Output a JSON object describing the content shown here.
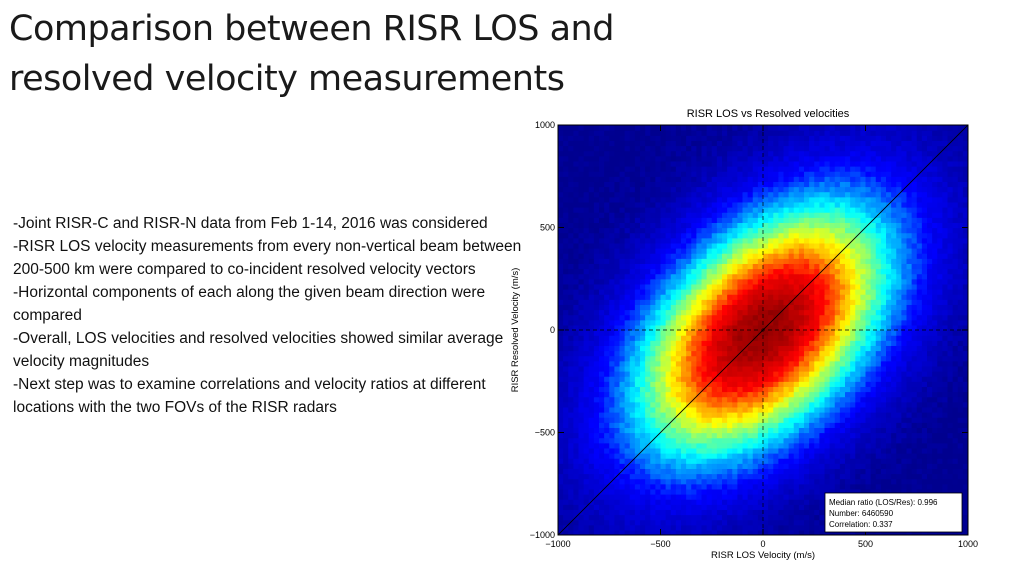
{
  "slide": {
    "title_lines": [
      "Comparison between RISR LOS and",
      "resolved velocity measurements"
    ],
    "bullets": [
      "-Joint RISR-C and RISR-N data from Feb 1-14, 2016 was considered",
      "-RISR LOS velocity measurements from every non-vertical beam between 200-500 km were compared to co-incident resolved velocity vectors",
      "-Horizontal components of each along the given beam direction were compared",
      "-Overall, LOS velocities and resolved velocities showed similar average velocity magnitudes",
      "-Next step was to examine correlations and velocity ratios at different locations with the two FOVs of the RISR radars"
    ]
  },
  "chart_data": {
    "type": "heatmap",
    "title": "RISR LOS vs Resolved velocities",
    "xlabel": "RISR LOS Velocity (m/s)",
    "ylabel": "RISR Resolved Velocity (m/s)",
    "xlim": [
      -1000,
      1000
    ],
    "ylim": [
      -1000,
      1000
    ],
    "xticks": [
      -1000,
      -500,
      0,
      500,
      1000
    ],
    "yticks": [
      -1000,
      -500,
      0,
      500,
      1000
    ],
    "xtick_labels": [
      "−1000",
      "−500",
      "0",
      "500",
      "1000"
    ],
    "ytick_labels": [
      "−1000",
      "−500",
      "0",
      "500",
      "1000"
    ],
    "reference_lines": [
      "y = x (solid)",
      "x = 0 (dashed)",
      "y = 0 (dashed)"
    ],
    "density_peak": {
      "x": 0,
      "y": 0
    },
    "colormap": [
      "#00008f",
      "#0000ff",
      "#00ffff",
      "#ffff00",
      "#ff0000",
      "#800000"
    ],
    "annotation": {
      "lines": [
        "Median ratio (LOS/Res): 0.996",
        "Number: 6460590",
        "Correlation: 0.337"
      ],
      "median_ratio": 0.996,
      "number": 6460590,
      "correlation": 0.337
    }
  }
}
